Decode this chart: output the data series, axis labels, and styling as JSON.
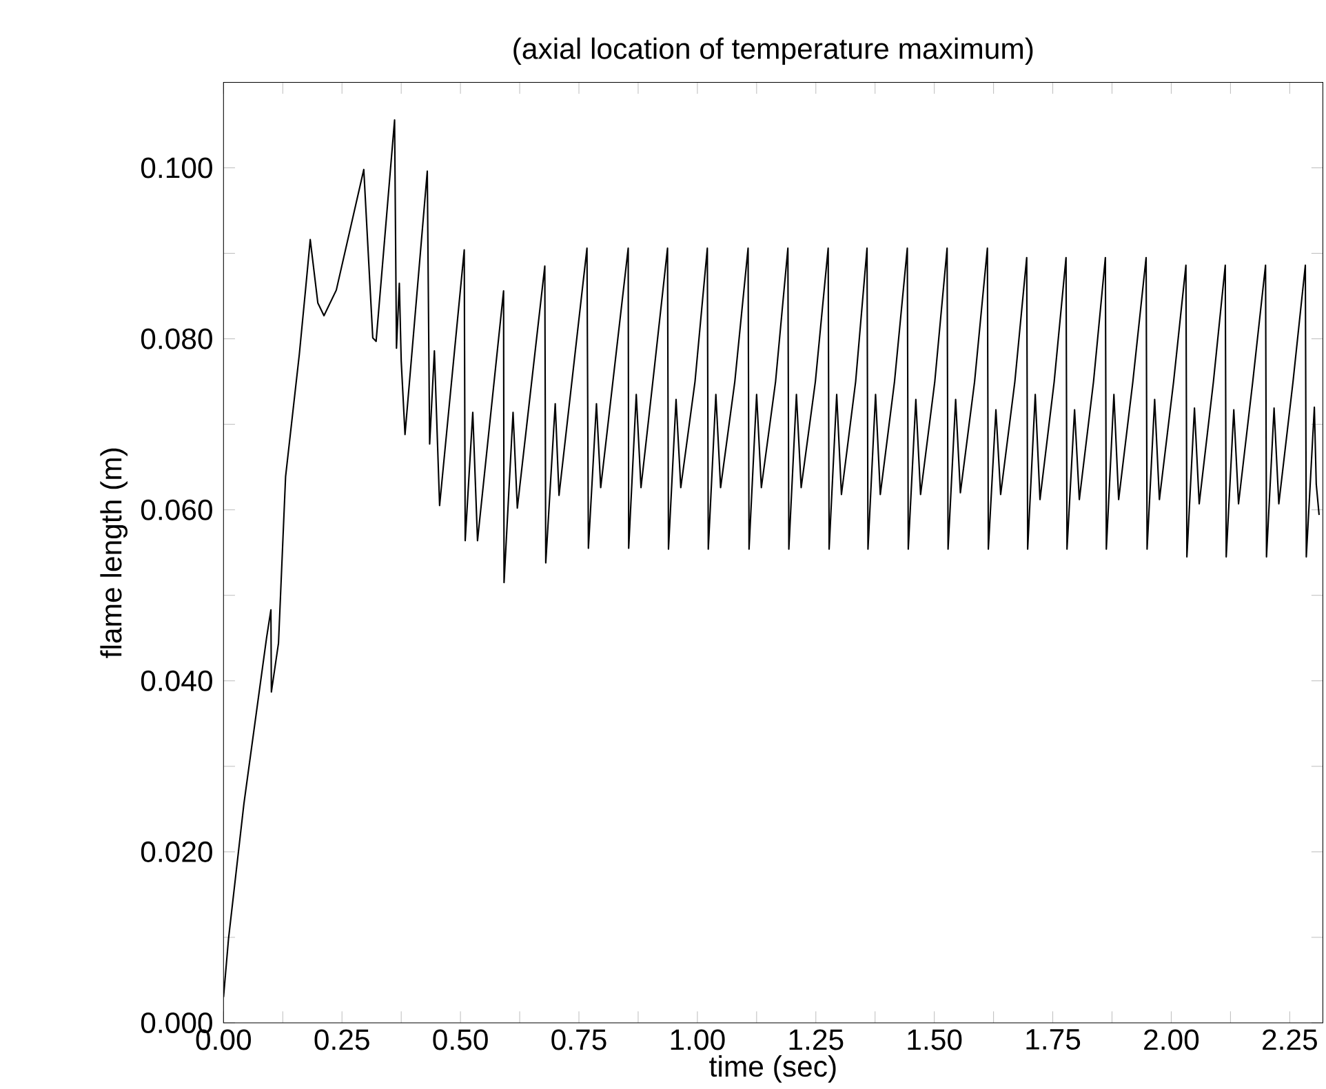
{
  "chart_data": {
    "type": "line",
    "title": "(axial location of temperature maximum)",
    "xlabel": "time (sec)",
    "ylabel": "flame length (m)",
    "xlim": [
      0,
      2.32
    ],
    "ylim": [
      0,
      0.11
    ],
    "xticks": [
      {
        "value": 0,
        "label": "0.00"
      },
      {
        "value": 0.125,
        "label": null
      },
      {
        "value": 0.25,
        "label": "0.25"
      },
      {
        "value": 0.375,
        "label": null
      },
      {
        "value": 0.5,
        "label": "0.50"
      },
      {
        "value": 0.625,
        "label": null
      },
      {
        "value": 0.75,
        "label": "0.75"
      },
      {
        "value": 0.875,
        "label": null
      },
      {
        "value": 1.0,
        "label": "1.00"
      },
      {
        "value": 1.125,
        "label": null
      },
      {
        "value": 1.25,
        "label": "1.25"
      },
      {
        "value": 1.375,
        "label": null
      },
      {
        "value": 1.5,
        "label": "1.50"
      },
      {
        "value": 1.625,
        "label": null
      },
      {
        "value": 1.75,
        "label": "1.75"
      },
      {
        "value": 1.875,
        "label": null
      },
      {
        "value": 2.0,
        "label": "2.00"
      },
      {
        "value": 2.125,
        "label": null
      },
      {
        "value": 2.25,
        "label": "2.25"
      }
    ],
    "yticks": [
      {
        "value": 0,
        "label": "0.000"
      },
      {
        "value": 0.01,
        "label": null
      },
      {
        "value": 0.02,
        "label": "0.020"
      },
      {
        "value": 0.03,
        "label": null
      },
      {
        "value": 0.04,
        "label": "0.040"
      },
      {
        "value": 0.05,
        "label": null
      },
      {
        "value": 0.06,
        "label": "0.060"
      },
      {
        "value": 0.07,
        "label": null
      },
      {
        "value": 0.08,
        "label": "0.080"
      },
      {
        "value": 0.09,
        "label": null
      },
      {
        "value": 0.1,
        "label": "0.100"
      }
    ],
    "grid": false,
    "marker": "none",
    "line_style": "solid",
    "series": [
      {
        "color": "#000000",
        "x": [
          0.0,
          0.0105,
          0.043,
          0.091,
          0.1,
          0.101,
          0.116,
          0.131,
          0.16,
          0.173,
          0.183,
          0.199,
          0.212,
          0.238,
          0.296,
          0.315,
          0.322,
          0.361,
          0.365,
          0.371,
          0.375,
          0.383,
          0.43,
          0.435,
          0.445,
          0.456,
          0.508,
          0.51,
          0.526,
          0.536,
          0.591,
          0.592,
          0.611,
          0.62,
          0.678,
          0.68,
          0.7,
          0.708,
          0.767,
          0.77,
          0.787,
          0.796,
          0.854,
          0.855,
          0.871,
          0.881,
          0.91,
          0.937,
          0.939,
          0.955,
          0.965,
          0.995,
          1.021,
          1.023,
          1.039,
          1.049,
          1.079,
          1.107,
          1.109,
          1.125,
          1.135,
          1.165,
          1.191,
          1.193,
          1.209,
          1.219,
          1.249,
          1.276,
          1.278,
          1.294,
          1.304,
          1.334,
          1.358,
          1.36,
          1.376,
          1.386,
          1.416,
          1.443,
          1.445,
          1.461,
          1.471,
          1.501,
          1.527,
          1.529,
          1.545,
          1.555,
          1.585,
          1.612,
          1.614,
          1.63,
          1.64,
          1.67,
          1.695,
          1.697,
          1.713,
          1.723,
          1.753,
          1.778,
          1.78,
          1.796,
          1.806,
          1.836,
          1.861,
          1.863,
          1.879,
          1.889,
          1.919,
          1.947,
          1.949,
          1.965,
          1.975,
          2.005,
          2.031,
          2.033,
          2.049,
          2.059,
          2.089,
          2.114,
          2.116,
          2.132,
          2.142,
          2.172,
          2.199,
          2.201,
          2.217,
          2.227,
          2.257,
          2.283,
          2.285,
          2.302,
          2.306,
          2.312
        ],
        "values": [
          0.003,
          0.0098,
          0.0256,
          0.0451,
          0.0483,
          0.0387,
          0.0444,
          0.0639,
          0.0782,
          0.0857,
          0.0916,
          0.0842,
          0.0827,
          0.0857,
          0.0998,
          0.0801,
          0.0797,
          0.1056,
          0.0789,
          0.0865,
          0.0774,
          0.0688,
          0.0996,
          0.0677,
          0.0786,
          0.0605,
          0.0904,
          0.0564,
          0.0714,
          0.0564,
          0.0856,
          0.0515,
          0.0714,
          0.0602,
          0.0885,
          0.0538,
          0.0724,
          0.0617,
          0.0906,
          0.0555,
          0.0724,
          0.0626,
          0.0906,
          0.0555,
          0.0735,
          0.0626,
          0.077,
          0.0906,
          0.0554,
          0.0729,
          0.0626,
          0.075,
          0.0906,
          0.0554,
          0.0735,
          0.0626,
          0.075,
          0.0906,
          0.0554,
          0.0735,
          0.0626,
          0.075,
          0.0906,
          0.0554,
          0.0735,
          0.0626,
          0.075,
          0.0906,
          0.0554,
          0.0735,
          0.0618,
          0.075,
          0.0906,
          0.0554,
          0.0735,
          0.0618,
          0.075,
          0.0906,
          0.0554,
          0.0729,
          0.0618,
          0.075,
          0.0906,
          0.0554,
          0.0729,
          0.062,
          0.075,
          0.0906,
          0.0554,
          0.0717,
          0.0618,
          0.075,
          0.0895,
          0.0554,
          0.0735,
          0.0612,
          0.075,
          0.0895,
          0.0554,
          0.0717,
          0.0612,
          0.075,
          0.0895,
          0.0554,
          0.0735,
          0.0612,
          0.075,
          0.0895,
          0.0554,
          0.0729,
          0.0612,
          0.075,
          0.0886,
          0.0545,
          0.0719,
          0.0607,
          0.075,
          0.0886,
          0.0545,
          0.0717,
          0.0607,
          0.075,
          0.0886,
          0.0545,
          0.0719,
          0.0607,
          0.075,
          0.0886,
          0.0545,
          0.072,
          0.063,
          0.0594
        ]
      }
    ]
  }
}
